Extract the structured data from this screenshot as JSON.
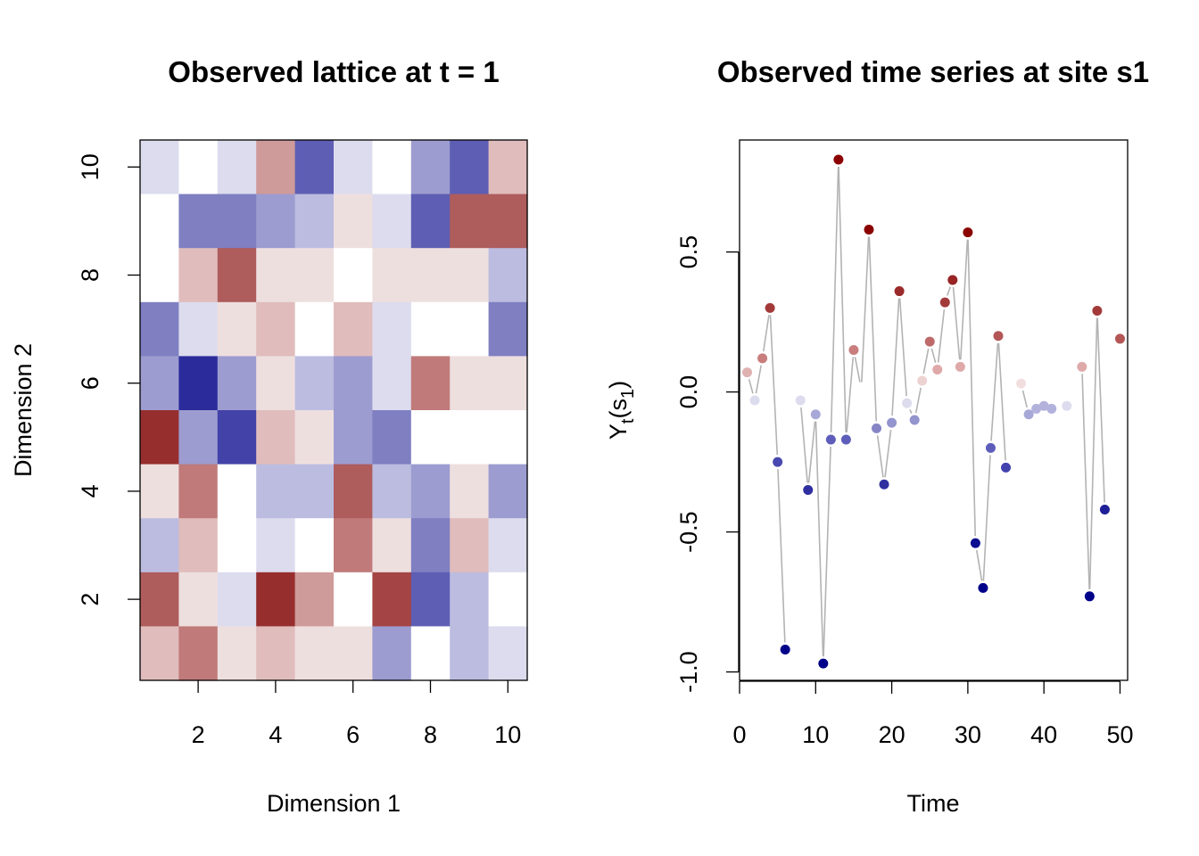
{
  "chart_data": [
    {
      "type": "heatmap",
      "title": "Observed lattice at t = 1",
      "xlabel": "Dimension 1",
      "ylabel": "Dimension 2",
      "xlim": [
        0.5,
        10.5
      ],
      "ylim": [
        0.5,
        10.5
      ],
      "xticks": [
        "2",
        "4",
        "6",
        "8",
        "10"
      ],
      "yticks": [
        "2",
        "4",
        "6",
        "8",
        "10"
      ],
      "colormap": "blue-white-red",
      "grid_rows_top_to_bottom_y10_to_y1": [
        [
          "#dcdcee",
          "#ffffff",
          "#dcdcee",
          "#cf9a9a",
          "#5e5eb4",
          "#dcdcee",
          "#ffffff",
          "#9c9cd0",
          "#5e5eb4",
          "#e0bcbc"
        ],
        [
          "#ffffff",
          "#7f7fc2",
          "#7f7fc2",
          "#9c9cd0",
          "#bcbce0",
          "#eedfdf",
          "#dcdcee",
          "#5e5eb4",
          "#ae5c5c",
          "#ae5c5c"
        ],
        [
          "#ffffff",
          "#e0bcbc",
          "#ae5c5c",
          "#eedfdf",
          "#eedfdf",
          "#ffffff",
          "#eedfdf",
          "#eedfdf",
          "#eedfdf",
          "#bcbce0"
        ],
        [
          "#7f7fc2",
          "#dcdcee",
          "#eedfdf",
          "#e0bcbc",
          "#ffffff",
          "#e0bcbc",
          "#dcdcee",
          "#ffffff",
          "#ffffff",
          "#7f7fc2"
        ],
        [
          "#9c9cd0",
          "#2b2b9b",
          "#9c9cd0",
          "#eedfdf",
          "#bcbce0",
          "#9c9cd0",
          "#dcdcee",
          "#c07a7a",
          "#eedfdf",
          "#eedfdf"
        ],
        [
          "#962e2e",
          "#9c9cd0",
          "#4242a8",
          "#e0bcbc",
          "#eedfdf",
          "#9c9cd0",
          "#7f7fc2",
          "#ffffff",
          "#ffffff",
          "#ffffff"
        ],
        [
          "#eedfdf",
          "#c07a7a",
          "#ffffff",
          "#bcbce0",
          "#bcbce0",
          "#ae5c5c",
          "#bcbce0",
          "#9c9cd0",
          "#eedfdf",
          "#9c9cd0"
        ],
        [
          "#bcbce0",
          "#e0bcbc",
          "#ffffff",
          "#dcdcee",
          "#ffffff",
          "#c07a7a",
          "#eedfdf",
          "#7f7fc2",
          "#e0bcbc",
          "#dcdcee"
        ],
        [
          "#ae5c5c",
          "#eedfdf",
          "#dcdcee",
          "#962e2e",
          "#cf9a9a",
          "#ffffff",
          "#a54444",
          "#5e5eb4",
          "#bcbce0",
          "#ffffff"
        ],
        [
          "#e0bcbc",
          "#c07a7a",
          "#eedfdf",
          "#e0bcbc",
          "#eedfdf",
          "#eedfdf",
          "#9c9cd0",
          "#ffffff",
          "#bcbce0",
          "#dcdcee"
        ]
      ]
    },
    {
      "type": "line",
      "title": "Observed time series at site s1",
      "xlabel": "Time",
      "ylabel": "Y",
      "ylabel_sub": "t",
      "ylabel_arg": "(s",
      "ylabel_arg_sub": "1",
      "ylabel_close": ")",
      "xlim": [
        0,
        51
      ],
      "ylim": [
        -1.03,
        0.9
      ],
      "xticks": [
        "0",
        "10",
        "20",
        "30",
        "40",
        "50"
      ],
      "yticks": [
        "-1.0",
        "-0.5",
        "0.0",
        "0.5"
      ],
      "line_color": "#b3b3b3",
      "colormap": "blue-white-red",
      "missing_times": [
        7,
        36,
        42,
        49
      ],
      "points": [
        {
          "t": 1,
          "y": 0.07,
          "c": "#dfb1b1"
        },
        {
          "t": 2,
          "y": -0.03,
          "c": "#dcdcee"
        },
        {
          "t": 3,
          "y": 0.12,
          "c": "#c97d7d"
        },
        {
          "t": 4,
          "y": 0.3,
          "c": "#a33a3a"
        },
        {
          "t": 5,
          "y": -0.25,
          "c": "#4848b0"
        },
        {
          "t": 6,
          "y": -0.92,
          "c": "#00008b"
        },
        {
          "t": 8,
          "y": -0.03,
          "c": "#dcdcee"
        },
        {
          "t": 9,
          "y": -0.35,
          "c": "#2f2fa0"
        },
        {
          "t": 10,
          "y": -0.08,
          "c": "#a8a8d8"
        },
        {
          "t": 11,
          "y": -0.97,
          "c": "#00008b"
        },
        {
          "t": 12,
          "y": -0.17,
          "c": "#5e5eba"
        },
        {
          "t": 13,
          "y": 0.83,
          "c": "#8b0000"
        },
        {
          "t": 14,
          "y": -0.17,
          "c": "#5e5eba"
        },
        {
          "t": 15,
          "y": 0.15,
          "c": "#c97d7d"
        },
        {
          "t": 16,
          "y": 0.01,
          "c": null
        },
        {
          "t": 17,
          "y": 0.58,
          "c": "#8b0000"
        },
        {
          "t": 18,
          "y": -0.13,
          "c": "#8585c6"
        },
        {
          "t": 19,
          "y": -0.33,
          "c": "#2f2fa0"
        },
        {
          "t": 20,
          "y": -0.11,
          "c": "#9494ce"
        },
        {
          "t": 21,
          "y": 0.36,
          "c": "#9b2a2a"
        },
        {
          "t": 22,
          "y": -0.04,
          "c": "#dcdcee"
        },
        {
          "t": 23,
          "y": -0.1,
          "c": "#9494ce"
        },
        {
          "t": 24,
          "y": 0.04,
          "c": "#edd2d2"
        },
        {
          "t": 25,
          "y": 0.18,
          "c": "#be6a6a"
        },
        {
          "t": 26,
          "y": 0.08,
          "c": "#dfa9a9"
        },
        {
          "t": 27,
          "y": 0.32,
          "c": "#a33a3a"
        },
        {
          "t": 28,
          "y": 0.4,
          "c": "#982424"
        },
        {
          "t": 29,
          "y": 0.09,
          "c": "#dfa9a9"
        },
        {
          "t": 30,
          "y": 0.57,
          "c": "#8b0000"
        },
        {
          "t": 31,
          "y": -0.54,
          "c": "#0d0d90"
        },
        {
          "t": 32,
          "y": -0.7,
          "c": "#00008b"
        },
        {
          "t": 33,
          "y": -0.2,
          "c": "#5e5eba"
        },
        {
          "t": 34,
          "y": 0.2,
          "c": "#b45656"
        },
        {
          "t": 35,
          "y": -0.27,
          "c": "#4242ae"
        },
        {
          "t": 37,
          "y": 0.03,
          "c": "#f2dede"
        },
        {
          "t": 38,
          "y": -0.08,
          "c": "#a8a8d8"
        },
        {
          "t": 39,
          "y": -0.06,
          "c": "#b2b2dc"
        },
        {
          "t": 40,
          "y": -0.05,
          "c": "#b2b2dc"
        },
        {
          "t": 41,
          "y": -0.06,
          "c": "#b2b2dc"
        },
        {
          "t": 43,
          "y": -0.05,
          "c": "#dcdcee"
        },
        {
          "t": 45,
          "y": 0.09,
          "c": "#dfa9a9"
        },
        {
          "t": 46,
          "y": -0.73,
          "c": "#00008b"
        },
        {
          "t": 47,
          "y": 0.29,
          "c": "#a33a3a"
        },
        {
          "t": 48,
          "y": -0.42,
          "c": "#1f1f98"
        },
        {
          "t": 50,
          "y": 0.19,
          "c": "#b45656"
        }
      ]
    }
  ]
}
